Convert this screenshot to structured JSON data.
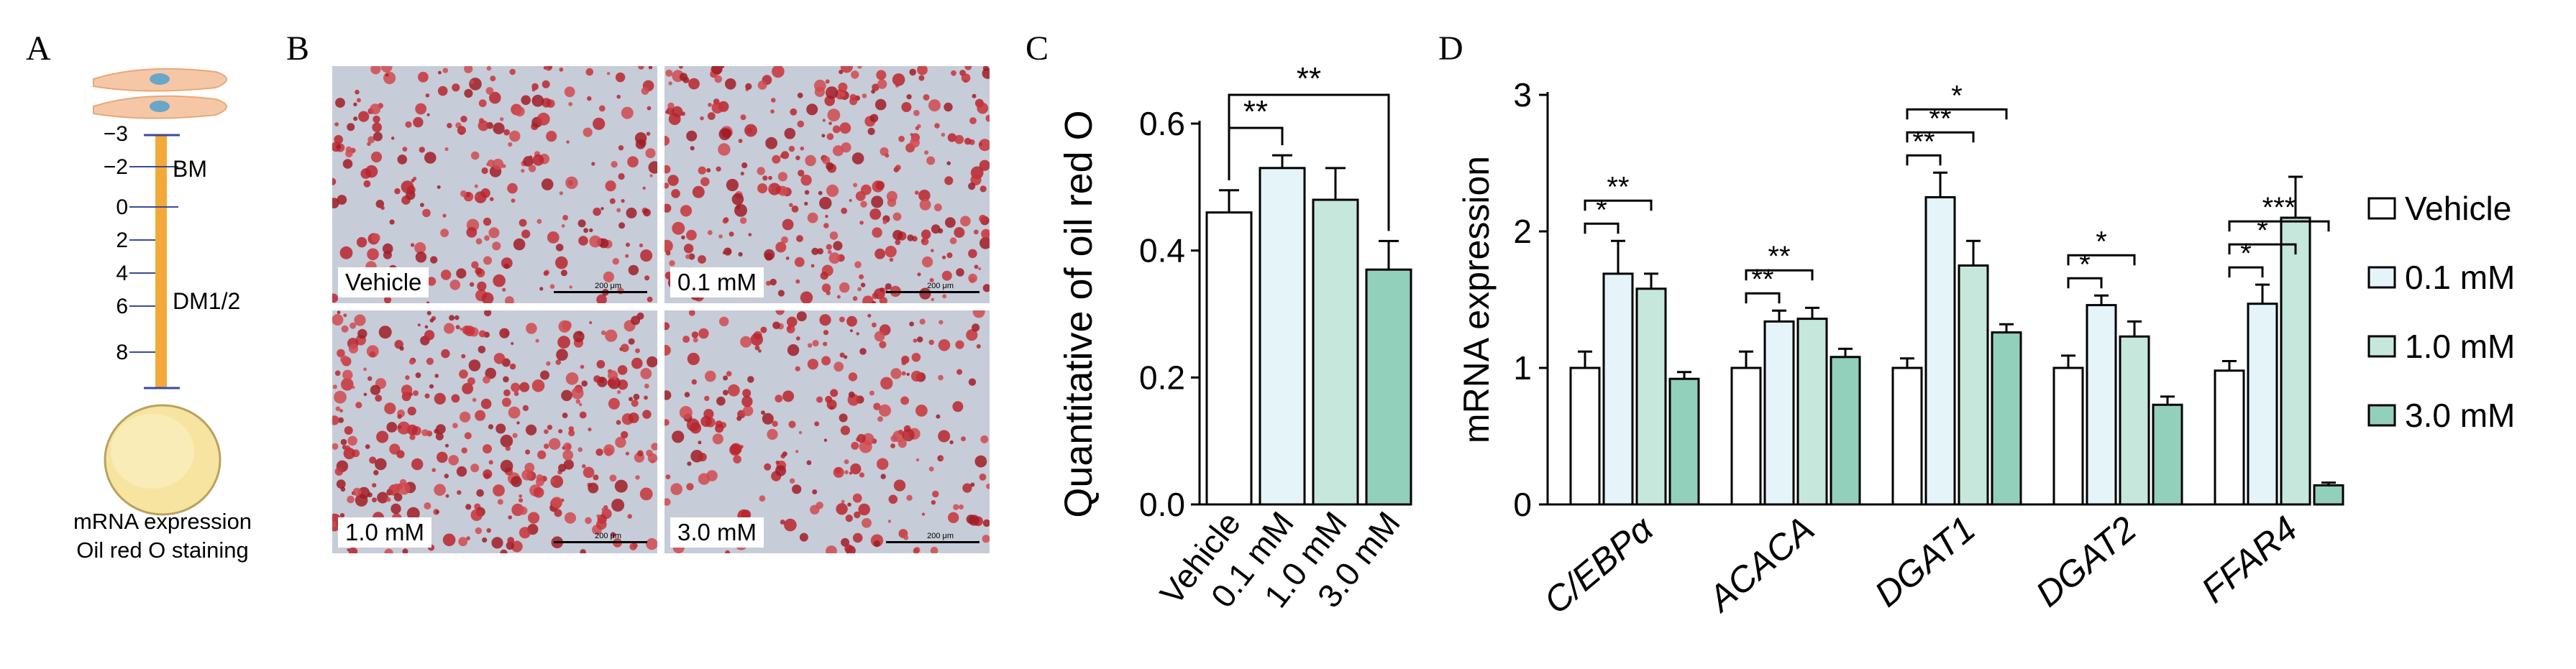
{
  "panels": {
    "A": "A",
    "B": "B",
    "C": "C",
    "D": "D"
  },
  "panel_a": {
    "ticks": [
      "−3",
      "−2",
      "0",
      "2",
      "4",
      "6",
      "8"
    ],
    "stage_bm": "BM",
    "stage_dm": "DM1/2",
    "caption_line1": "mRNA expression",
    "caption_line2": "Oil red O staining"
  },
  "panel_b": {
    "images": [
      {
        "label": "Vehicle",
        "scale": "200 μm"
      },
      {
        "label": "0.1 mM",
        "scale": "200 μm"
      },
      {
        "label": "1.0 mM",
        "scale": "200 μm"
      },
      {
        "label": "3.0 mM",
        "scale": "200 μm"
      }
    ]
  },
  "colors": {
    "vehicle": "#ffffff",
    "c01": "#e4f4f8",
    "c10": "#c6e8dc",
    "c30": "#92d0bc"
  },
  "chart_data": [
    {
      "type": "bar",
      "ylabel": "Quantitative of oil red O",
      "categories": [
        "Vehicle",
        "0.1 mM",
        "1.0 mM",
        "3.0 mM"
      ],
      "values": [
        0.46,
        0.53,
        0.48,
        0.37
      ],
      "errors": [
        0.035,
        0.02,
        0.05,
        0.045
      ],
      "ylim": [
        0,
        0.6
      ],
      "yticks": [
        "0.0",
        "0.2",
        "0.4",
        "0.6"
      ],
      "significance": [
        {
          "from": "Vehicle",
          "to": "0.1 mM",
          "label": "**"
        },
        {
          "from": "Vehicle",
          "to": "3.0 mM",
          "label": "**"
        }
      ]
    },
    {
      "type": "bar",
      "ylabel": "mRNA expression",
      "categories": [
        "C/EBPα",
        "ACACA",
        "DGAT1",
        "DGAT2",
        "FFAR4"
      ],
      "series": [
        {
          "name": "Vehicle",
          "values": [
            1.0,
            1.0,
            1.0,
            1.0,
            0.98
          ],
          "errors": [
            0.12,
            0.12,
            0.07,
            0.09,
            0.07
          ]
        },
        {
          "name": "0.1 mM",
          "values": [
            1.69,
            1.34,
            2.25,
            1.46,
            1.47
          ],
          "errors": [
            0.24,
            0.08,
            0.18,
            0.07,
            0.14
          ]
        },
        {
          "name": "1.0 mM",
          "values": [
            1.58,
            1.36,
            1.75,
            1.23,
            2.1
          ],
          "errors": [
            0.11,
            0.08,
            0.18,
            0.11,
            0.3
          ]
        },
        {
          "name": "3.0 mM",
          "values": [
            0.92,
            1.08,
            1.26,
            0.73,
            0.14
          ],
          "errors": [
            0.05,
            0.06,
            0.06,
            0.06,
            0.02
          ]
        }
      ],
      "ylim": [
        0,
        3
      ],
      "yticks": [
        "0",
        "1",
        "2",
        "3"
      ],
      "significance": [
        {
          "group": "C/EBPα",
          "to": "0.1 mM",
          "label": "*"
        },
        {
          "group": "C/EBPα",
          "to": "1.0 mM",
          "label": "**"
        },
        {
          "group": "ACACA",
          "to": "0.1 mM",
          "label": "**"
        },
        {
          "group": "ACACA",
          "to": "1.0 mM",
          "label": "**"
        },
        {
          "group": "DGAT1",
          "to": "0.1 mM",
          "label": "**"
        },
        {
          "group": "DGAT1",
          "to": "1.0 mM",
          "label": "**"
        },
        {
          "group": "DGAT1",
          "to": "3.0 mM",
          "label": "*"
        },
        {
          "group": "DGAT2",
          "to": "0.1 mM",
          "label": "*"
        },
        {
          "group": "DGAT2",
          "to": "1.0 mM",
          "label": "*"
        },
        {
          "group": "FFAR4",
          "to": "0.1 mM",
          "label": "*"
        },
        {
          "group": "FFAR4",
          "to": "1.0 mM",
          "label": "*"
        },
        {
          "group": "FFAR4",
          "to": "3.0 mM",
          "label": "***"
        }
      ],
      "legend": [
        "Vehicle",
        "0.1 mM",
        "1.0 mM",
        "3.0 mM"
      ]
    }
  ]
}
